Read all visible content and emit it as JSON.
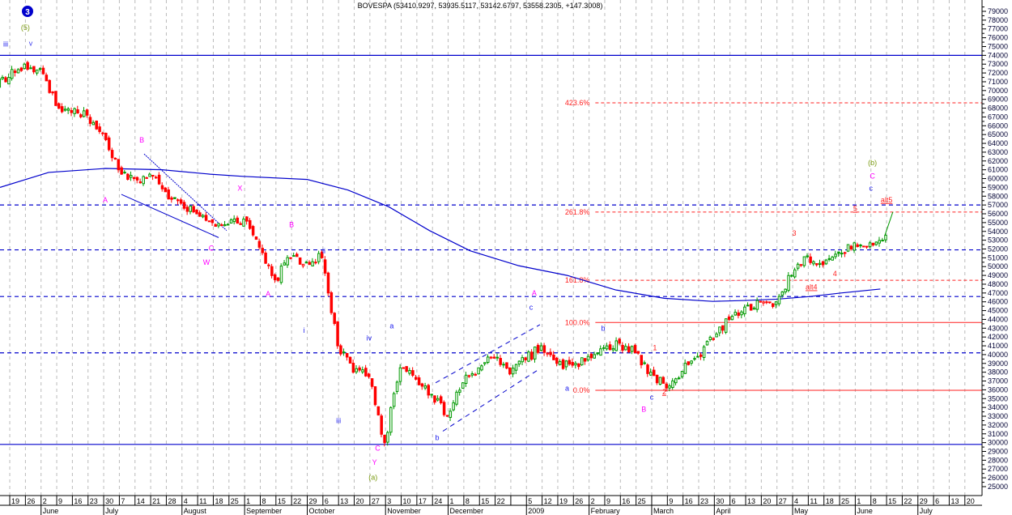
{
  "chart_data": {
    "type": "candlestick",
    "title": "BOVESPA (53410.9297, 53935.5117, 53142.6797, 53558.2305, +147.3008)",
    "wave_degree_badge": "3",
    "ylim": [
      25000,
      79000
    ],
    "y_ticks": [
      25000,
      26000,
      27000,
      28000,
      29000,
      30000,
      31000,
      32000,
      33000,
      34000,
      35000,
      36000,
      37000,
      38000,
      39000,
      40000,
      41000,
      42000,
      43000,
      44000,
      45000,
      46000,
      47000,
      48000,
      49000,
      50000,
      51000,
      52000,
      53000,
      54000,
      55000,
      56000,
      57000,
      58000,
      59000,
      60000,
      61000,
      62000,
      63000,
      64000,
      65000,
      66000,
      67000,
      68000,
      69000,
      70000,
      71000,
      72000,
      73000,
      74000,
      75000,
      76000,
      77000,
      78000,
      79000
    ],
    "x_week_labels": [
      "12",
      "19",
      "26",
      "2",
      "9",
      "16",
      "23",
      "30",
      "7",
      "14",
      "21",
      "28",
      "4",
      "11",
      "18",
      "25",
      "1",
      "8",
      "15",
      "22",
      "29",
      "6",
      "13",
      "20",
      "27",
      "3",
      "10",
      "17",
      "24",
      "1",
      "8",
      "15",
      "22",
      "",
      "5",
      "12",
      "19",
      "26",
      "2",
      "9",
      "16",
      "25",
      "",
      "9",
      "16",
      "23",
      "30",
      "6",
      "13",
      "20",
      "27",
      "4",
      "11",
      "18",
      "25",
      "1",
      "8",
      "15",
      "22",
      "29",
      "6",
      "13",
      "20"
    ],
    "x_months": [
      {
        "label": "June",
        "week": 3
      },
      {
        "label": "July",
        "week": 7
      },
      {
        "label": "August",
        "week": 12
      },
      {
        "label": "September",
        "week": 16
      },
      {
        "label": "October",
        "week": 20
      },
      {
        "label": "November",
        "week": 25
      },
      {
        "label": "December",
        "week": 29
      },
      {
        "label": "2009",
        "week": 34
      },
      {
        "label": "February",
        "week": 38
      },
      {
        "label": "March",
        "week": 42
      },
      {
        "label": "April",
        "week": 46
      },
      {
        "label": "May",
        "week": 51
      },
      {
        "label": "June",
        "week": 55
      },
      {
        "label": "July",
        "week": 59
      }
    ],
    "weekly_close": [
      71500,
      73000,
      72500,
      68300,
      67500,
      67200,
      65100,
      61000,
      60000,
      60500,
      58500,
      57200,
      56000,
      55000,
      54800,
      55400,
      52200,
      48500,
      51000,
      50500,
      51000,
      41000,
      38000,
      37500,
      30000,
      38500,
      37200,
      35500,
      33000,
      36800,
      38500,
      39600,
      37800,
      39400,
      41000,
      39000,
      38800,
      39800,
      40700,
      41300,
      40200,
      38000,
      36200,
      38100,
      39800,
      41800,
      44000,
      45400,
      46000,
      46000,
      49000,
      51200,
      50200,
      51500,
      52700,
      52700,
      53558.23
    ],
    "moving_average": [
      [
        0.38,
        59000
      ],
      [
        3.48,
        60700
      ],
      [
        7.1,
        61150
      ],
      [
        10.72,
        61000
      ],
      [
        13.8,
        60500
      ],
      [
        15.89,
        60250
      ],
      [
        20.0,
        59900
      ],
      [
        22.6,
        58700
      ],
      [
        25.2,
        56800
      ],
      [
        27.8,
        54100
      ],
      [
        30.4,
        51800
      ],
      [
        33.5,
        50100
      ],
      [
        36.6,
        49000
      ],
      [
        39.7,
        47350
      ],
      [
        42.8,
        46400
      ],
      [
        45.9,
        46050
      ],
      [
        48.0,
        46150
      ],
      [
        50.0,
        46300
      ],
      [
        52.1,
        46600
      ],
      [
        54.1,
        47000
      ],
      [
        56.6,
        47450
      ]
    ],
    "horizontal_lines": [
      {
        "price": 74000,
        "style": "solid",
        "color": "#0000cc"
      },
      {
        "price": 29800,
        "style": "solid",
        "color": "#0000cc"
      },
      {
        "price": 57000,
        "style": "dashed",
        "color": "#0000cc"
      },
      {
        "price": 51900,
        "style": "dashed",
        "color": "#0000cc"
      },
      {
        "price": 46600,
        "style": "dashed",
        "color": "#0000cc"
      },
      {
        "price": 40200,
        "style": "dashed",
        "color": "#0000cc"
      }
    ],
    "fib_levels": [
      {
        "label": "423.6%",
        "price": 68600,
        "style": "dashed"
      },
      {
        "label": "261.8%",
        "price": 56200,
        "style": "dashed"
      },
      {
        "label": "161.8%",
        "price": 48450,
        "style": "dashed"
      },
      {
        "label": "100.0%",
        "price": 43650,
        "style": "solid"
      },
      {
        "label": "0.0%",
        "price": 35950,
        "style": "solid"
      }
    ],
    "fib_start_week": 38.4,
    "trend_lines": [
      {
        "from": [
          8.13,
          58200
        ],
        "to": [
          14.34,
          53300
        ],
        "style": "solid"
      },
      {
        "from": [
          9.58,
          62800
        ],
        "to": [
          14.85,
          54100
        ],
        "style": "dotted"
      },
      {
        "from": [
          28.66,
          31300
        ],
        "to": [
          34.86,
          38400
        ],
        "style": "dashed"
      },
      {
        "from": [
          28.2,
          36800
        ],
        "to": [
          34.86,
          43400
        ],
        "style": "dashed"
      },
      {
        "from": [
          56.9,
          53600
        ],
        "to": [
          57.4,
          56200
        ],
        "style": "projection"
      }
    ],
    "annotations": [
      {
        "text": "(5)",
        "week": 2.0,
        "price": 76900,
        "color": "#7a9a10"
      },
      {
        "text": "iii",
        "week": 0.74,
        "price": 75000,
        "color": "#2020ee"
      },
      {
        "text": "v",
        "week": 2.34,
        "price": 75100,
        "color": "#4040ee"
      },
      {
        "text": "B",
        "week": 9.43,
        "price": 64100,
        "color": "#ff00ff"
      },
      {
        "text": "A",
        "week": 7.1,
        "price": 57300,
        "color": "#ff00ff"
      },
      {
        "text": "X",
        "week": 15.7,
        "price": 58600,
        "color": "#ff00ff"
      },
      {
        "text": "C",
        "week": 13.87,
        "price": 51800,
        "color": "#ff00ff"
      },
      {
        "text": "W",
        "week": 13.56,
        "price": 50200,
        "color": "#ff00ff"
      },
      {
        "text": "B",
        "week": 19.0,
        "price": 54500,
        "color": "#ff00ff"
      },
      {
        "text": "A",
        "week": 17.5,
        "price": 46600,
        "color": "#ff00ff"
      },
      {
        "text": "ii",
        "week": 21.06,
        "price": 51500,
        "color": "#2020ee"
      },
      {
        "text": "i",
        "week": 19.8,
        "price": 42500,
        "color": "#2020ee"
      },
      {
        "text": "iii",
        "week": 22.0,
        "price": 32200,
        "color": "#2020ee"
      },
      {
        "text": "iv",
        "week": 23.95,
        "price": 41600,
        "color": "#2020ee"
      },
      {
        "text": "a",
        "week": 25.4,
        "price": 43000,
        "color": "#2020ee"
      },
      {
        "text": "C",
        "week": 24.5,
        "price": 29100,
        "color": "#ff00ff"
      },
      {
        "text": "Y",
        "week": 24.3,
        "price": 27500,
        "color": "#ff00ff"
      },
      {
        "text": "(a)",
        "week": 24.2,
        "price": 25800,
        "color": "#7a9a10"
      },
      {
        "text": "b",
        "week": 28.3,
        "price": 30300,
        "color": "#2020ee"
      },
      {
        "text": "A",
        "week": 34.5,
        "price": 46700,
        "color": "#ff00ff"
      },
      {
        "text": "c",
        "week": 34.3,
        "price": 45100,
        "color": "#2020ee"
      },
      {
        "text": "b",
        "week": 38.9,
        "price": 42700,
        "color": "#2020ee"
      },
      {
        "text": "a",
        "week": 36.6,
        "price": 35900,
        "color": "#2020ee"
      },
      {
        "text": "1",
        "week": 42.2,
        "price": 40500,
        "color": "#ff2020"
      },
      {
        "text": "2",
        "week": 42.8,
        "price": 35500,
        "color": "#ff2020",
        "underline": true
      },
      {
        "text": "c",
        "week": 42.0,
        "price": 34900,
        "color": "#2020ee"
      },
      {
        "text": "B",
        "week": 41.5,
        "price": 33500,
        "color": "#ff00ff"
      },
      {
        "text": "3",
        "week": 51.1,
        "price": 53500,
        "color": "#ff2020"
      },
      {
        "text": "4",
        "week": 53.7,
        "price": 48900,
        "color": "#ff2020"
      },
      {
        "text": "alt4",
        "week": 52.2,
        "price": 47400,
        "color": "#ff2020",
        "underline": true
      },
      {
        "text": "5",
        "week": 55.0,
        "price": 56300,
        "color": "#ff2020",
        "underline": true
      },
      {
        "text": "alt5",
        "week": 57.0,
        "price": 57300,
        "color": "#ff2020",
        "underline": true
      },
      {
        "text": "c",
        "week": 56.0,
        "price": 58600,
        "color": "#2020ee"
      },
      {
        "text": "C",
        "week": 56.1,
        "price": 60000,
        "color": "#ff00ff"
      },
      {
        "text": "(b)",
        "week": 56.1,
        "price": 61500,
        "color": "#7a9a10"
      }
    ],
    "colors": {
      "up": "#009900",
      "down": "#ff0000",
      "ma": "#0000cc",
      "grid": "#bbbbbb"
    }
  }
}
